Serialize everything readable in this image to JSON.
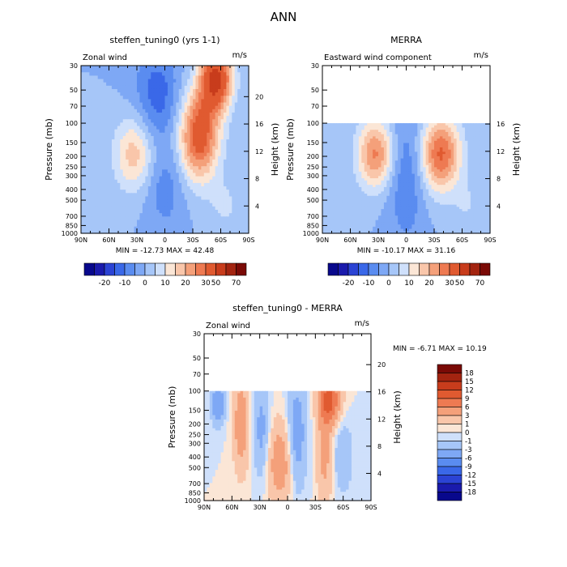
{
  "figure": {
    "title": "ANN"
  },
  "colors": {
    "wind_levels": [
      "#08088c",
      "#1a1aac",
      "#2b43d4",
      "#3a68e8",
      "#5a8cf0",
      "#7ea8f5",
      "#a6c6f8",
      "#cfe0fb",
      "#fbe6d6",
      "#f9c6aa",
      "#f4a07a",
      "#ee7a52",
      "#e05a30",
      "#c83c1c",
      "#a32410",
      "#7a0a06"
    ],
    "diff_levels": [
      "#08088c",
      "#1a1aac",
      "#2b43d4",
      "#3a68e8",
      "#5a8cf0",
      "#7ea8f5",
      "#a6c6f8",
      "#cfe0fb",
      "#fbe6d6",
      "#f9c6aa",
      "#f4a07a",
      "#ee7a52",
      "#e05a30",
      "#c83c1c",
      "#a32410",
      "#7a0a06"
    ]
  },
  "chart_data": [
    {
      "type": "heatmap",
      "title": "steffen_tuning0 (yrs 1-1)",
      "subtitle_left": "Zonal wind",
      "subtitle_right": "m/s",
      "ylabel": "Pressure (mb)",
      "ylabel_right": "Height (km)",
      "x_ticks": [
        "90N",
        "60N",
        "30N",
        "0",
        "30S",
        "60S",
        "90S"
      ],
      "x_tick_values": [
        90,
        60,
        30,
        0,
        -30,
        -60,
        -90
      ],
      "y_ticks": [
        "30",
        "50",
        "70",
        "100",
        "150",
        "200",
        "250",
        "300",
        "400",
        "500",
        "700",
        "850",
        "1000"
      ],
      "y_tick_values": [
        30,
        50,
        70,
        100,
        150,
        200,
        250,
        300,
        400,
        500,
        700,
        850,
        1000
      ],
      "height_ticks": [
        "4",
        "8",
        "12",
        "16",
        "20"
      ],
      "height_tick_values": [
        4,
        8,
        12,
        16,
        20
      ],
      "xlim": [
        90,
        -90
      ],
      "ylim": [
        1000,
        30
      ],
      "y_scale": "log",
      "data_top_pressure": 30,
      "stats": "MIN = -12.73   MAX = 42.48",
      "min": -12.73,
      "max": 42.48,
      "colorbar_labels": [
        "-20",
        "-10",
        "0",
        "10",
        "20",
        "30",
        "50",
        "70"
      ],
      "features": [
        {
          "lat": 33,
          "p": 190,
          "value": 18,
          "sx": 15,
          "sy": 0.55
        },
        {
          "lat": -37,
          "p": 130,
          "value": 35,
          "sx": 15,
          "sy": 0.65
        },
        {
          "lat": -55,
          "p": 40,
          "value": 42,
          "sx": 12,
          "sy": 0.45
        },
        {
          "lat": 8,
          "p": 55,
          "value": -13,
          "sx": 17,
          "sy": 0.7
        },
        {
          "lat": 0,
          "p": 400,
          "value": -8,
          "sx": 15,
          "sy": 0.6
        },
        {
          "lat": -65,
          "p": 550,
          "value": 6,
          "sx": 12,
          "sy": 0.35
        }
      ]
    },
    {
      "type": "heatmap",
      "title": "MERRA",
      "subtitle_left": "Eastward wind component",
      "subtitle_right": "m/s",
      "ylabel": "Pressure (mb)",
      "ylabel_right": "Height (km)",
      "x_ticks": [
        "90N",
        "60N",
        "30N",
        "0",
        "30S",
        "60S",
        "90S"
      ],
      "x_tick_values": [
        90,
        60,
        30,
        0,
        -30,
        -60,
        -90
      ],
      "y_ticks": [
        "30",
        "50",
        "70",
        "100",
        "150",
        "200",
        "250",
        "300",
        "400",
        "500",
        "700",
        "850",
        "1000"
      ],
      "y_tick_values": [
        30,
        50,
        70,
        100,
        150,
        200,
        250,
        300,
        400,
        500,
        700,
        850,
        1000
      ],
      "height_ticks": [
        "4",
        "8",
        "12",
        "16"
      ],
      "height_tick_values": [
        4,
        8,
        12,
        16
      ],
      "xlim": [
        90,
        -90
      ],
      "ylim": [
        1000,
        30
      ],
      "y_scale": "log",
      "data_top_pressure": 100,
      "stats": "MIN = -10.17   MAX = 31.16",
      "min": -10.17,
      "max": 31.16,
      "colorbar_labels": [
        "-20",
        "-10",
        "0",
        "10",
        "20",
        "30",
        "50",
        "70"
      ],
      "features": [
        {
          "lat": 33,
          "p": 190,
          "value": 26,
          "sx": 14,
          "sy": 0.5
        },
        {
          "lat": -37,
          "p": 190,
          "value": 31,
          "sx": 15,
          "sy": 0.55
        },
        {
          "lat": 0,
          "p": 300,
          "value": -10,
          "sx": 14,
          "sy": 1.0
        },
        {
          "lat": -65,
          "p": 550,
          "value": 5,
          "sx": 10,
          "sy": 0.35
        }
      ]
    },
    {
      "type": "heatmap",
      "title": "steffen_tuning0 - MERRA",
      "subtitle_left": "Zonal wind",
      "subtitle_right": "m/s",
      "ylabel": "Pressure (mb)",
      "ylabel_right": "Height (km)",
      "x_ticks": [
        "90N",
        "60N",
        "30N",
        "0",
        "30S",
        "60S",
        "90S"
      ],
      "x_tick_values": [
        90,
        60,
        30,
        0,
        -30,
        -60,
        -90
      ],
      "y_ticks": [
        "30",
        "50",
        "70",
        "100",
        "150",
        "200",
        "250",
        "300",
        "400",
        "500",
        "700",
        "850",
        "1000"
      ],
      "y_tick_values": [
        30,
        50,
        70,
        100,
        150,
        200,
        250,
        300,
        400,
        500,
        700,
        850,
        1000
      ],
      "height_ticks": [
        "4",
        "8",
        "12",
        "16",
        "20"
      ],
      "height_tick_values": [
        4,
        8,
        12,
        16,
        20
      ],
      "xlim": [
        90,
        -90
      ],
      "ylim": [
        1000,
        30
      ],
      "y_scale": "log",
      "data_top_pressure": 100,
      "stats": "MIN =   -6.71   MAX =   10.19",
      "min": -6.71,
      "max": 10.19,
      "colorbar_labels": [
        "18",
        "15",
        "12",
        "9",
        "6",
        "3",
        "1",
        "0",
        "-1",
        "-3",
        "-6",
        "-9",
        "-12",
        "-15",
        "-18"
      ],
      "features": [
        {
          "lat": 50,
          "p": 200,
          "value": 5,
          "sx": 6,
          "sy": 0.7
        },
        {
          "lat": 8,
          "p": 450,
          "value": 5,
          "sx": 10,
          "sy": 0.6
        },
        {
          "lat": -45,
          "p": 120,
          "value": 10,
          "sx": 8,
          "sy": 0.35
        },
        {
          "lat": -40,
          "p": 350,
          "value": 4,
          "sx": 6,
          "sy": 0.8
        },
        {
          "lat": 75,
          "p": 130,
          "value": -6,
          "sx": 5,
          "sy": 0.3
        },
        {
          "lat": 28,
          "p": 230,
          "value": -4,
          "sx": 6,
          "sy": 0.7
        },
        {
          "lat": -10,
          "p": 250,
          "value": -5,
          "sx": 7,
          "sy": 0.8
        },
        {
          "lat": -60,
          "p": 400,
          "value": -3,
          "sx": 7,
          "sy": 0.5
        }
      ]
    }
  ]
}
